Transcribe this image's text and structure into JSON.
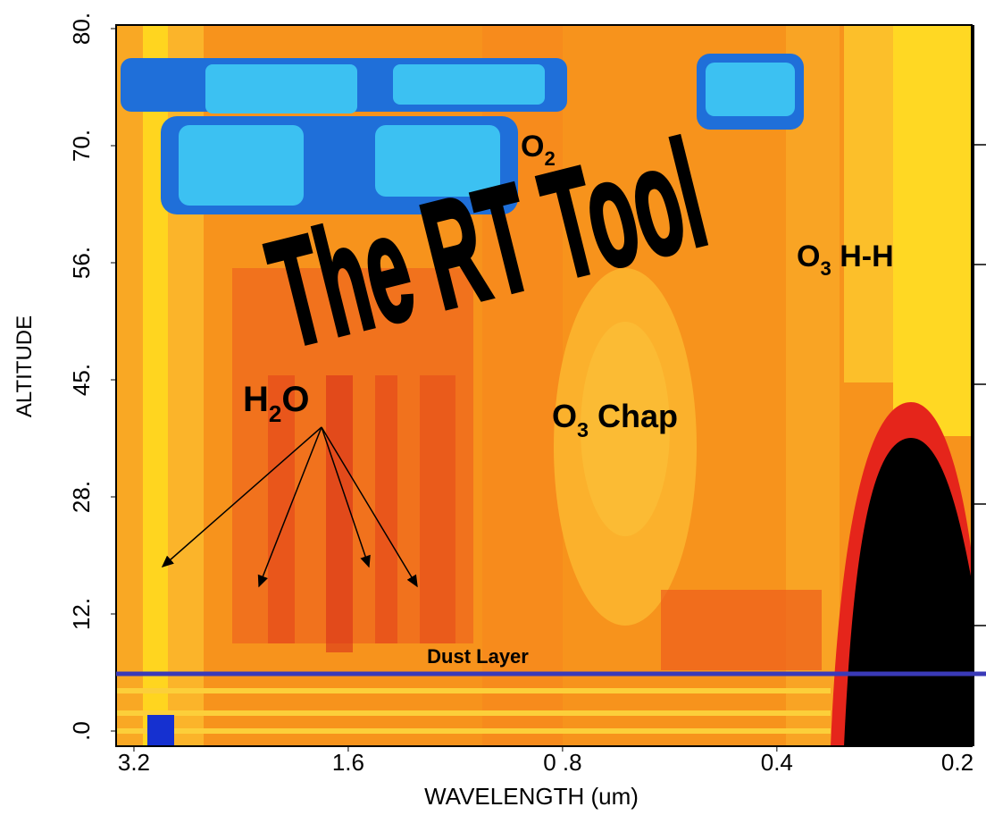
{
  "chart_data": {
    "type": "heatmap",
    "xlabel": "WAVELENGTH (um)",
    "ylabel": "ALTITUDE",
    "xscale": "log",
    "xlim": [
      3.39,
      0.213
    ],
    "xticks": [
      3.2,
      1.6,
      {
        "value": 0.8,
        "label": "0 .8"
      },
      0.4,
      0.2
    ],
    "y_categories": [
      ".0",
      "12.",
      "28.",
      "45.",
      "56.",
      "70.",
      "80."
    ],
    "annotations": [
      {
        "text": "The RT Tool"
      },
      {
        "base": "O",
        "sub": "2"
      },
      {
        "base": "O",
        "sub": "3",
        "rest": " H-H"
      },
      {
        "base": "H",
        "sub": "2",
        "rest": "O"
      },
      {
        "base": "O",
        "sub": "3",
        "rest": " Chap"
      },
      {
        "text": "Dust Layer"
      }
    ]
  }
}
